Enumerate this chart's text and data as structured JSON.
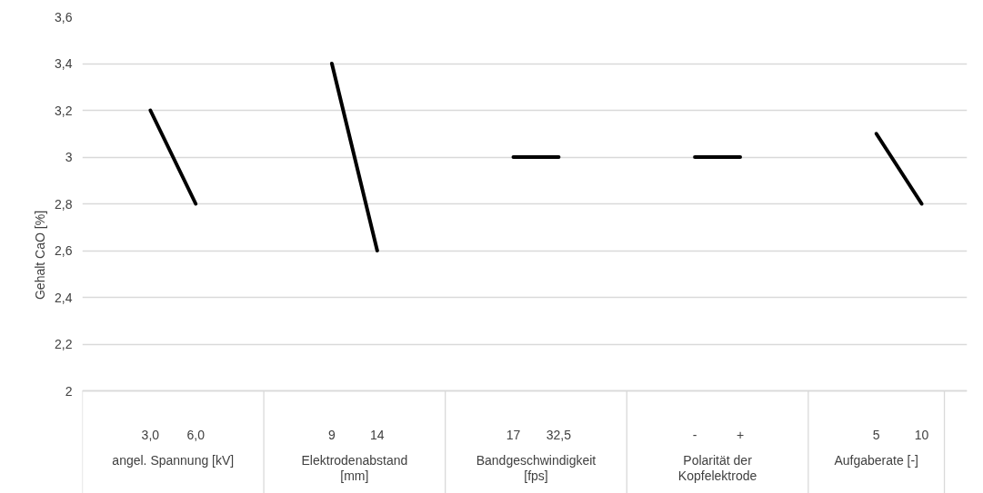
{
  "chart_data": {
    "type": "line",
    "ylabel": "Gehalt CaO [%]",
    "categories": [
      null,
      "3,0",
      "6,0",
      null,
      null,
      "9",
      "14",
      null,
      null,
      "17",
      "32,5",
      null,
      null,
      "-",
      "+",
      null,
      null,
      "5",
      "10",
      null
    ],
    "series": [
      {
        "color": "#000000",
        "values": [
          null,
          3.2,
          2.8,
          null,
          null,
          3.4,
          2.6,
          null,
          null,
          3.0,
          3.0,
          null,
          null,
          3.0,
          3.0,
          null,
          null,
          3.1,
          2.8,
          null
        ]
      }
    ],
    "annotations": [
      "angel. Spannung [kV]",
      "Elektrodenabstand [mm]",
      "Bandgeschwindigkeit [fps]",
      "Polarität der Kopfelektrode",
      "Aufgaberate [-]"
    ],
    "ylim": [
      2,
      3.6
    ],
    "yticks": [
      2,
      {
        "value": 2.2,
        "label": "2,2"
      },
      {
        "value": 2.4,
        "label": "2,4"
      },
      {
        "value": 2.6,
        "label": "2,6"
      },
      {
        "value": 2.8,
        "label": "2,8"
      },
      3,
      {
        "value": 3.2,
        "label": "3,2"
      },
      {
        "value": 3.4,
        "label": "3,4"
      },
      {
        "value": 3.6,
        "label": "3,6"
      }
    ],
    "grid": "y"
  }
}
